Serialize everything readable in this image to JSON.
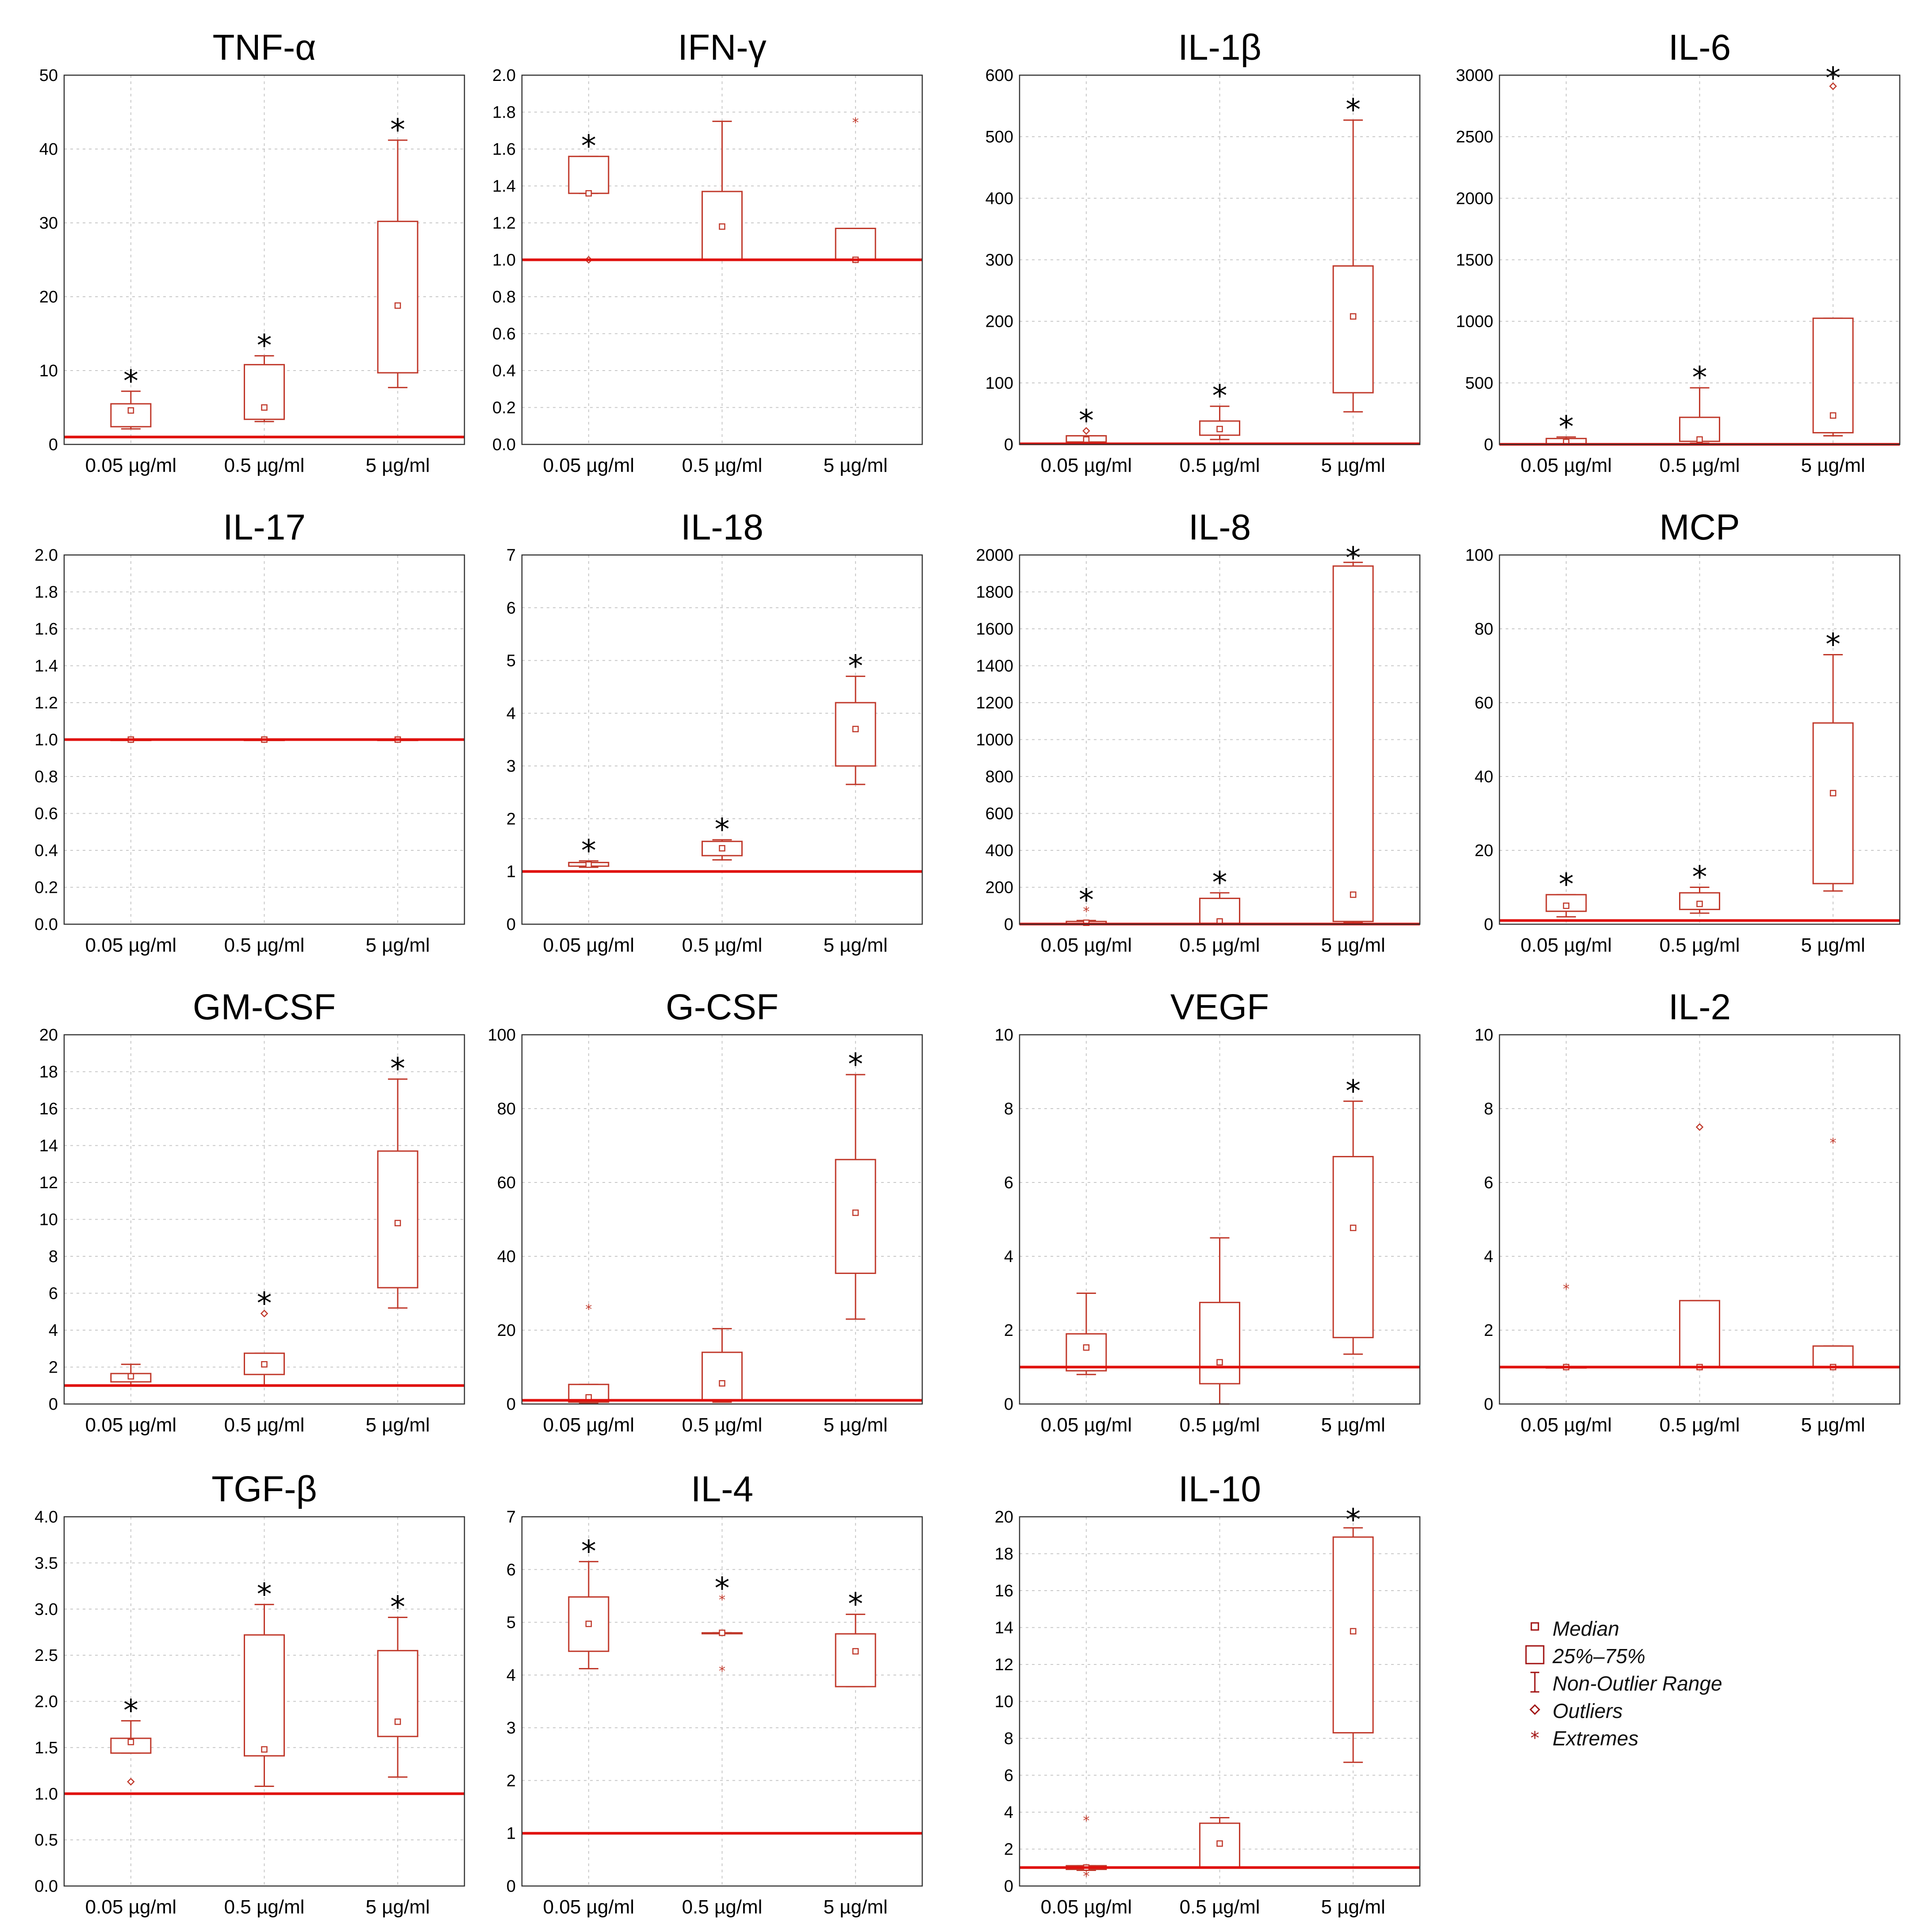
{
  "figure": {
    "style": {
      "box_color": "#c0392b",
      "reference_color": "#e0110d",
      "grid_color": "#c8c8c8",
      "text_color": "#000000"
    },
    "legend": {
      "median": "Median",
      "box": "25%–75%",
      "whisker": "Non-Outlier Range",
      "outliers": "Outliers",
      "extremes": "Extremes"
    }
  },
  "chart_data": [
    {
      "type": "box",
      "title": "TNF-α",
      "categories": [
        "0.05 µg/ml",
        "0.5 µg/ml",
        "5 µg/ml"
      ],
      "ylim": [
        0,
        50
      ],
      "yticks": [
        0,
        10,
        20,
        30,
        40,
        50
      ],
      "tick_labels": [
        "0",
        "10",
        "20",
        "30",
        "40",
        "50"
      ],
      "reference": 1,
      "boxes": [
        {
          "median": 4.6,
          "q1": 2.4,
          "q3": 5.5,
          "whisker_low": 2.1,
          "whisker_high": 7.2,
          "outliers": [],
          "extremes": [],
          "significant": true
        },
        {
          "median": 5.0,
          "q1": 3.4,
          "q3": 10.8,
          "whisker_low": 3.1,
          "whisker_high": 12.0,
          "outliers": [],
          "extremes": [],
          "significant": true
        },
        {
          "median": 18.8,
          "q1": 9.7,
          "q3": 30.2,
          "whisker_low": 7.7,
          "whisker_high": 41.2,
          "outliers": [],
          "extremes": [],
          "significant": true
        }
      ]
    },
    {
      "type": "box",
      "title": "IFN-γ",
      "categories": [
        "0.05 µg/ml",
        "0.5 µg/ml",
        "5 µg/ml"
      ],
      "ylim": [
        0,
        2
      ],
      "yticks": [
        0,
        0.2,
        0.4,
        0.6,
        0.8,
        1,
        1.2,
        1.4,
        1.6,
        1.8,
        2
      ],
      "tick_labels": [
        "0.0",
        "0.2",
        "0.4",
        "0.6",
        "0.8",
        "1.0",
        "1.2",
        "1.4",
        "1.6",
        "1.8",
        "2.0"
      ],
      "reference": 1,
      "boxes": [
        {
          "median": 1.36,
          "q1": 1.36,
          "q3": 1.56,
          "whisker_low": 1.36,
          "whisker_high": 1.56,
          "outliers": [
            1.0
          ],
          "extremes": [],
          "significant": true
        },
        {
          "median": 1.18,
          "q1": 1.0,
          "q3": 1.37,
          "whisker_low": 1.0,
          "whisker_high": 1.75,
          "outliers": [],
          "extremes": [],
          "significant": false
        },
        {
          "median": 1.0,
          "q1": 1.0,
          "q3": 1.17,
          "whisker_low": 1.0,
          "whisker_high": 1.17,
          "outliers": [],
          "extremes": [
            1.75
          ],
          "significant": false
        }
      ]
    },
    {
      "type": "box",
      "title": "IL-1β",
      "categories": [
        "0.05 µg/ml",
        "0.5 µg/ml",
        "5 µg/ml"
      ],
      "ylim": [
        0,
        600
      ],
      "yticks": [
        0,
        100,
        200,
        300,
        400,
        500,
        600
      ],
      "tick_labels": [
        "0",
        "100",
        "200",
        "300",
        "400",
        "500",
        "600"
      ],
      "reference": 1,
      "boxes": [
        {
          "median": 8,
          "q1": 4,
          "q3": 14,
          "whisker_low": 2,
          "whisker_high": 14,
          "outliers": [
            22
          ],
          "extremes": [],
          "significant": true
        },
        {
          "median": 25,
          "q1": 15,
          "q3": 38,
          "whisker_low": 8,
          "whisker_high": 62,
          "outliers": [],
          "extremes": [],
          "significant": true
        },
        {
          "median": 208,
          "q1": 84,
          "q3": 290,
          "whisker_low": 53,
          "whisker_high": 527,
          "outliers": [],
          "extremes": [],
          "significant": true
        }
      ]
    },
    {
      "type": "box",
      "title": "IL-6",
      "categories": [
        "0.05 µg/ml",
        "0.5 µg/ml",
        "5 µg/ml"
      ],
      "ylim": [
        0,
        3000
      ],
      "yticks": [
        0,
        500,
        1000,
        1500,
        2000,
        2500,
        3000
      ],
      "tick_labels": [
        "0",
        "500",
        "1000",
        "1500",
        "2000",
        "2500",
        "3000"
      ],
      "reference": 1,
      "boxes": [
        {
          "median": 20,
          "q1": 5,
          "q3": 48,
          "whisker_low": 2,
          "whisker_high": 60,
          "outliers": [],
          "extremes": [],
          "significant": true
        },
        {
          "median": 40,
          "q1": 25,
          "q3": 220,
          "whisker_low": 10,
          "whisker_high": 460,
          "outliers": [],
          "extremes": [],
          "significant": true
        },
        {
          "median": 235,
          "q1": 95,
          "q3": 1025,
          "whisker_low": 70,
          "whisker_high": 1025,
          "outliers": [
            2910
          ],
          "extremes": [],
          "significant": true
        }
      ]
    },
    {
      "type": "box",
      "title": "IL-17",
      "categories": [
        "0.05 µg/ml",
        "0.5 µg/ml",
        "5 µg/ml"
      ],
      "ylim": [
        0,
        2
      ],
      "yticks": [
        0,
        0.2,
        0.4,
        0.6,
        0.8,
        1,
        1.2,
        1.4,
        1.6,
        1.8,
        2
      ],
      "tick_labels": [
        "0.0",
        "0.2",
        "0.4",
        "0.6",
        "0.8",
        "1.0",
        "1.2",
        "1.4",
        "1.6",
        "1.8",
        "2.0"
      ],
      "reference": 1,
      "boxes": [
        {
          "median": 1.0,
          "q1": 1.0,
          "q3": 1.0,
          "whisker_low": 1.0,
          "whisker_high": 1.0,
          "outliers": [],
          "extremes": [],
          "significant": false
        },
        {
          "median": 1.0,
          "q1": 1.0,
          "q3": 1.0,
          "whisker_low": 1.0,
          "whisker_high": 1.0,
          "outliers": [],
          "extremes": [],
          "significant": false
        },
        {
          "median": 1.0,
          "q1": 1.0,
          "q3": 1.0,
          "whisker_low": 1.0,
          "whisker_high": 1.0,
          "outliers": [],
          "extremes": [],
          "significant": false
        }
      ]
    },
    {
      "type": "box",
      "title": "IL-18",
      "categories": [
        "0.05 µg/ml",
        "0.5 µg/ml",
        "5 µg/ml"
      ],
      "ylim": [
        0,
        7
      ],
      "yticks": [
        0,
        1,
        2,
        3,
        4,
        5,
        6,
        7
      ],
      "tick_labels": [
        "0",
        "1",
        "2",
        "3",
        "4",
        "5",
        "6",
        "7"
      ],
      "reference": 1,
      "boxes": [
        {
          "median": 1.13,
          "q1": 1.1,
          "q3": 1.17,
          "whisker_low": 1.08,
          "whisker_high": 1.2,
          "outliers": [],
          "extremes": [],
          "significant": true
        },
        {
          "median": 1.44,
          "q1": 1.3,
          "q3": 1.57,
          "whisker_low": 1.22,
          "whisker_high": 1.6,
          "outliers": [],
          "extremes": [],
          "significant": true
        },
        {
          "median": 3.7,
          "q1": 3.0,
          "q3": 4.2,
          "whisker_low": 2.65,
          "whisker_high": 4.7,
          "outliers": [],
          "extremes": [],
          "significant": true
        }
      ]
    },
    {
      "type": "box",
      "title": "IL-8",
      "categories": [
        "0.05 µg/ml",
        "0.5 µg/ml",
        "5 µg/ml"
      ],
      "ylim": [
        0,
        2000
      ],
      "yticks": [
        0,
        200,
        400,
        600,
        800,
        1000,
        1200,
        1400,
        1600,
        1800,
        2000
      ],
      "tick_labels": [
        "0",
        "200",
        "400",
        "600",
        "800",
        "1000",
        "1200",
        "1400",
        "1600",
        "1800",
        "2000"
      ],
      "reference": 1,
      "boxes": [
        {
          "median": 8,
          "q1": 3,
          "q3": 15,
          "whisker_low": 1,
          "whisker_high": 20,
          "outliers": [],
          "extremes": [
            75
          ],
          "significant": true
        },
        {
          "median": 15,
          "q1": 5,
          "q3": 140,
          "whisker_low": 2,
          "whisker_high": 170,
          "outliers": [],
          "extremes": [],
          "significant": true
        },
        {
          "median": 160,
          "q1": 15,
          "q3": 1940,
          "whisker_low": 8,
          "whisker_high": 1960,
          "outliers": [],
          "extremes": [],
          "significant": true
        }
      ]
    },
    {
      "type": "box",
      "title": "MCP",
      "categories": [
        "0.05 µg/ml",
        "0.5 µg/ml",
        "5 µg/ml"
      ],
      "ylim": [
        0,
        100
      ],
      "yticks": [
        0,
        20,
        40,
        60,
        80,
        100
      ],
      "tick_labels": [
        "0",
        "20",
        "40",
        "60",
        "80",
        "100"
      ],
      "reference": 1,
      "boxes": [
        {
          "median": 5.0,
          "q1": 3.5,
          "q3": 8.0,
          "whisker_low": 2.0,
          "whisker_high": 8.0,
          "outliers": [],
          "extremes": [],
          "significant": true
        },
        {
          "median": 5.5,
          "q1": 4.0,
          "q3": 8.5,
          "whisker_low": 3.0,
          "whisker_high": 10.0,
          "outliers": [],
          "extremes": [],
          "significant": true
        },
        {
          "median": 35.5,
          "q1": 11.0,
          "q3": 54.5,
          "whisker_low": 9.0,
          "whisker_high": 73.0,
          "outliers": [],
          "extremes": [],
          "significant": true
        }
      ]
    },
    {
      "type": "box",
      "title": "GM-CSF",
      "categories": [
        "0.05 µg/ml",
        "0.5 µg/ml",
        "5 µg/ml"
      ],
      "ylim": [
        0,
        20
      ],
      "yticks": [
        0,
        2,
        4,
        6,
        8,
        10,
        12,
        14,
        16,
        18,
        20
      ],
      "tick_labels": [
        "0",
        "2",
        "4",
        "6",
        "8",
        "10",
        "12",
        "14",
        "16",
        "18",
        "20"
      ],
      "reference": 1,
      "boxes": [
        {
          "median": 1.5,
          "q1": 1.2,
          "q3": 1.65,
          "whisker_low": 1.0,
          "whisker_high": 2.15,
          "outliers": [],
          "extremes": [],
          "significant": false
        },
        {
          "median": 2.15,
          "q1": 1.6,
          "q3": 2.75,
          "whisker_low": 1.0,
          "whisker_high": 2.75,
          "outliers": [
            4.9
          ],
          "extremes": [],
          "significant": true
        },
        {
          "median": 9.8,
          "q1": 6.3,
          "q3": 13.7,
          "whisker_low": 5.2,
          "whisker_high": 17.6,
          "outliers": [],
          "extremes": [],
          "significant": true
        }
      ]
    },
    {
      "type": "box",
      "title": "G-CSF",
      "categories": [
        "0.05 µg/ml",
        "0.5 µg/ml",
        "5 µg/ml"
      ],
      "ylim": [
        0,
        100
      ],
      "yticks": [
        0,
        20,
        40,
        60,
        80,
        100
      ],
      "tick_labels": [
        "0",
        "20",
        "40",
        "60",
        "80",
        "100"
      ],
      "reference": 1,
      "boxes": [
        {
          "median": 1.8,
          "q1": 0.5,
          "q3": 5.3,
          "whisker_low": 0.3,
          "whisker_high": 5.3,
          "outliers": [],
          "extremes": [
            26
          ],
          "significant": false
        },
        {
          "median": 5.6,
          "q1": 1.0,
          "q3": 14.0,
          "whisker_low": 0.5,
          "whisker_high": 20.4,
          "outliers": [],
          "extremes": [],
          "significant": false
        },
        {
          "median": 51.8,
          "q1": 35.4,
          "q3": 66.2,
          "whisker_low": 23.0,
          "whisker_high": 89.2,
          "outliers": [],
          "extremes": [],
          "significant": true
        }
      ]
    },
    {
      "type": "box",
      "title": "VEGF",
      "categories": [
        "0.05 µg/ml",
        "0.5 µg/ml",
        "5 µg/ml"
      ],
      "ylim": [
        0,
        10
      ],
      "yticks": [
        0,
        2,
        4,
        6,
        8,
        10
      ],
      "tick_labels": [
        "0",
        "2",
        "4",
        "6",
        "8",
        "10"
      ],
      "reference": 1,
      "boxes": [
        {
          "median": 1.53,
          "q1": 0.9,
          "q3": 1.9,
          "whisker_low": 0.8,
          "whisker_high": 3.0,
          "outliers": [],
          "extremes": [],
          "significant": false
        },
        {
          "median": 1.13,
          "q1": 0.55,
          "q3": 2.75,
          "whisker_low": 0.0,
          "whisker_high": 4.5,
          "outliers": [],
          "extremes": [],
          "significant": false
        },
        {
          "median": 4.77,
          "q1": 1.8,
          "q3": 6.7,
          "whisker_low": 1.35,
          "whisker_high": 8.2,
          "outliers": [],
          "extremes": [],
          "significant": true
        }
      ]
    },
    {
      "type": "box",
      "title": "IL-2",
      "categories": [
        "0.05 µg/ml",
        "0.5 µg/ml",
        "5 µg/ml"
      ],
      "ylim": [
        0,
        10
      ],
      "yticks": [
        0,
        2,
        4,
        6,
        8,
        10
      ],
      "tick_labels": [
        "0",
        "2",
        "4",
        "6",
        "8",
        "10"
      ],
      "reference": 1,
      "boxes": [
        {
          "median": 1.0,
          "q1": 1.0,
          "q3": 1.0,
          "whisker_low": 1.0,
          "whisker_high": 1.0,
          "outliers": [],
          "extremes": [
            3.15
          ],
          "significant": false
        },
        {
          "median": 1.0,
          "q1": 1.0,
          "q3": 2.8,
          "whisker_low": 1.0,
          "whisker_high": 2.8,
          "outliers": [
            7.5
          ],
          "extremes": [],
          "significant": false
        },
        {
          "median": 1.0,
          "q1": 1.0,
          "q3": 1.57,
          "whisker_low": 1.0,
          "whisker_high": 1.57,
          "outliers": [],
          "extremes": [
            7.1
          ],
          "significant": false
        }
      ]
    },
    {
      "type": "box",
      "title": "TGF-β",
      "categories": [
        "0.05 µg/ml",
        "0.5 µg/ml",
        "5 µg/ml"
      ],
      "ylim": [
        0,
        4
      ],
      "yticks": [
        0,
        0.5,
        1,
        1.5,
        2,
        2.5,
        3,
        3.5,
        4
      ],
      "tick_labels": [
        "0.0",
        "0.5",
        "1.0",
        "1.5",
        "2.0",
        "2.5",
        "3.0",
        "3.5",
        "4.0"
      ],
      "reference": 1,
      "boxes": [
        {
          "median": 1.56,
          "q1": 1.44,
          "q3": 1.6,
          "whisker_low": 1.44,
          "whisker_high": 1.79,
          "outliers": [
            1.13
          ],
          "extremes": [],
          "significant": true
        },
        {
          "median": 1.48,
          "q1": 1.41,
          "q3": 2.72,
          "whisker_low": 1.08,
          "whisker_high": 3.05,
          "outliers": [],
          "extremes": [],
          "significant": true
        },
        {
          "median": 1.78,
          "q1": 1.62,
          "q3": 2.55,
          "whisker_low": 1.18,
          "whisker_high": 2.91,
          "outliers": [],
          "extremes": [],
          "significant": true
        }
      ]
    },
    {
      "type": "box",
      "title": "IL-4",
      "categories": [
        "0.05 µg/ml",
        "0.5 µg/ml",
        "5 µg/ml"
      ],
      "ylim": [
        0,
        7
      ],
      "yticks": [
        0,
        1,
        2,
        3,
        4,
        5,
        6,
        7
      ],
      "tick_labels": [
        "0",
        "1",
        "2",
        "3",
        "4",
        "5",
        "6",
        "7"
      ],
      "reference": 1,
      "boxes": [
        {
          "median": 4.97,
          "q1": 4.45,
          "q3": 5.48,
          "whisker_low": 4.12,
          "whisker_high": 6.15,
          "outliers": [],
          "extremes": [],
          "significant": true
        },
        {
          "median": 4.8,
          "q1": 4.8,
          "q3": 4.8,
          "whisker_low": 4.8,
          "whisker_high": 4.8,
          "outliers": [],
          "extremes": [
            4.1,
            5.45
          ],
          "significant": true
        },
        {
          "median": 4.45,
          "q1": 3.78,
          "q3": 4.78,
          "whisker_low": 3.78,
          "whisker_high": 5.15,
          "outliers": [],
          "extremes": [],
          "significant": true
        }
      ]
    },
    {
      "type": "box",
      "title": "IL-10",
      "categories": [
        "0.05 µg/ml",
        "0.5 µg/ml",
        "5 µg/ml"
      ],
      "ylim": [
        0,
        20
      ],
      "yticks": [
        0,
        2,
        4,
        6,
        8,
        10,
        12,
        14,
        16,
        18,
        20
      ],
      "tick_labels": [
        "0",
        "2",
        "4",
        "6",
        "8",
        "10",
        "12",
        "14",
        "16",
        "18",
        "20"
      ],
      "reference": 1,
      "boxes": [
        {
          "median": 1.0,
          "q1": 0.9,
          "q3": 1.1,
          "whisker_low": 0.85,
          "whisker_high": 1.1,
          "outliers": [],
          "extremes": [
            0.6,
            3.6
          ],
          "significant": false
        },
        {
          "median": 2.3,
          "q1": 1.0,
          "q3": 3.4,
          "whisker_low": 1.0,
          "whisker_high": 3.7,
          "outliers": [],
          "extremes": [],
          "significant": false
        },
        {
          "median": 13.8,
          "q1": 8.3,
          "q3": 18.9,
          "whisker_low": 6.7,
          "whisker_high": 19.4,
          "outliers": [],
          "extremes": [],
          "significant": true
        }
      ]
    }
  ]
}
